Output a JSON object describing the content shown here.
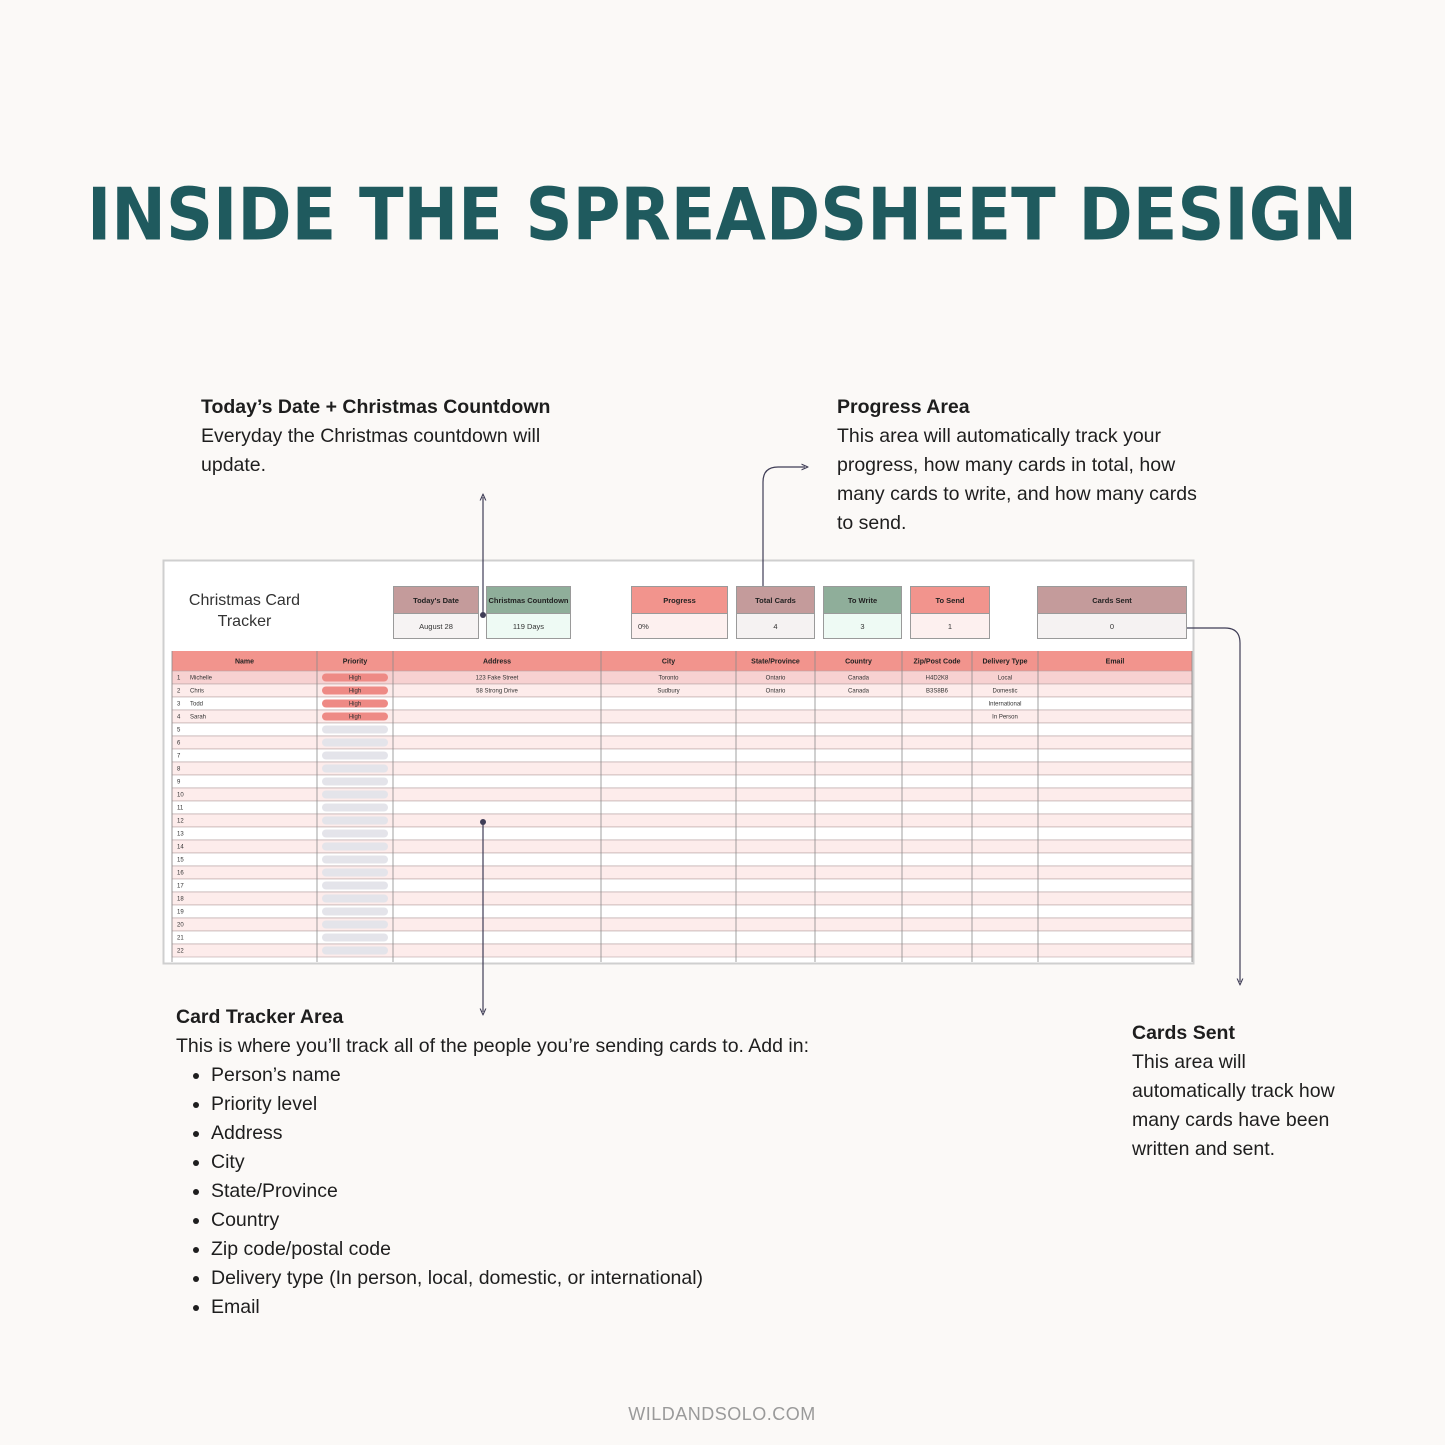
{
  "title": "INSIDE THE SPREADSHEET DESIGN",
  "callouts": [
    {
      "heading": "Today’s Date + Christmas Countdown",
      "body": "Everyday the Christmas countdown will update."
    },
    {
      "heading": "Progress Area",
      "body": "This area will automatically track your progress, how many cards in total, how many cards to write, and how many cards to send."
    },
    {
      "heading": "Card Tracker Area",
      "body": "This is where you’ll track all of the people you’re sending cards to. Add in:",
      "items": [
        "Person’s name",
        "Priority level",
        "Address",
        "City",
        "State/Province",
        "Country",
        "Zip code/postal code",
        "Delivery type (In person, local, domestic, or international)",
        "Email"
      ]
    },
    {
      "heading": "Cards Sent",
      "body": "This area will automatically track how many cards have been written and sent."
    }
  ],
  "spreadsheet": {
    "title": "Christmas Card Tracker",
    "summary": [
      {
        "label": "Today's Date",
        "value": "August 28"
      },
      {
        "label": "Christmas Countdown",
        "value": "119 Days"
      },
      {
        "label": "Progress",
        "value": "0%"
      },
      {
        "label": "Total Cards",
        "value": "4"
      },
      {
        "label": "To Write",
        "value": "3"
      },
      {
        "label": "To Send",
        "value": "1"
      },
      {
        "label": "Cards Sent",
        "value": "0"
      }
    ],
    "columns": [
      "Name",
      "Priority",
      "Address",
      "City",
      "State/Province",
      "Country",
      "Zip/Post Code",
      "Delivery Type",
      "Email"
    ],
    "rows": [
      [
        1,
        "Michelle",
        "High",
        "123 Fake Street",
        "Toronto",
        "Ontario",
        "Canada",
        "H4D2K8",
        "Local"
      ],
      [
        2,
        "Chris",
        "High",
        "58 Strong Drive",
        "Sudbury",
        "Ontario",
        "Canada",
        "B3S8B6",
        "Domestic"
      ],
      [
        3,
        "Todd",
        "High",
        null,
        null,
        null,
        null,
        null,
        "International"
      ],
      [
        4,
        "Sarah",
        "High",
        null,
        null,
        null,
        null,
        null,
        "In Person"
      ],
      [
        5
      ],
      [
        6
      ],
      [
        7
      ],
      [
        8
      ],
      [
        9
      ],
      [
        10
      ],
      [
        11
      ],
      [
        12
      ],
      [
        13
      ],
      [
        14
      ],
      [
        15
      ],
      [
        16
      ],
      [
        17
      ],
      [
        18
      ],
      [
        19
      ],
      [
        20
      ],
      [
        21
      ],
      [
        22
      ]
    ]
  },
  "footer": "WILDANDSOLO.COM"
}
